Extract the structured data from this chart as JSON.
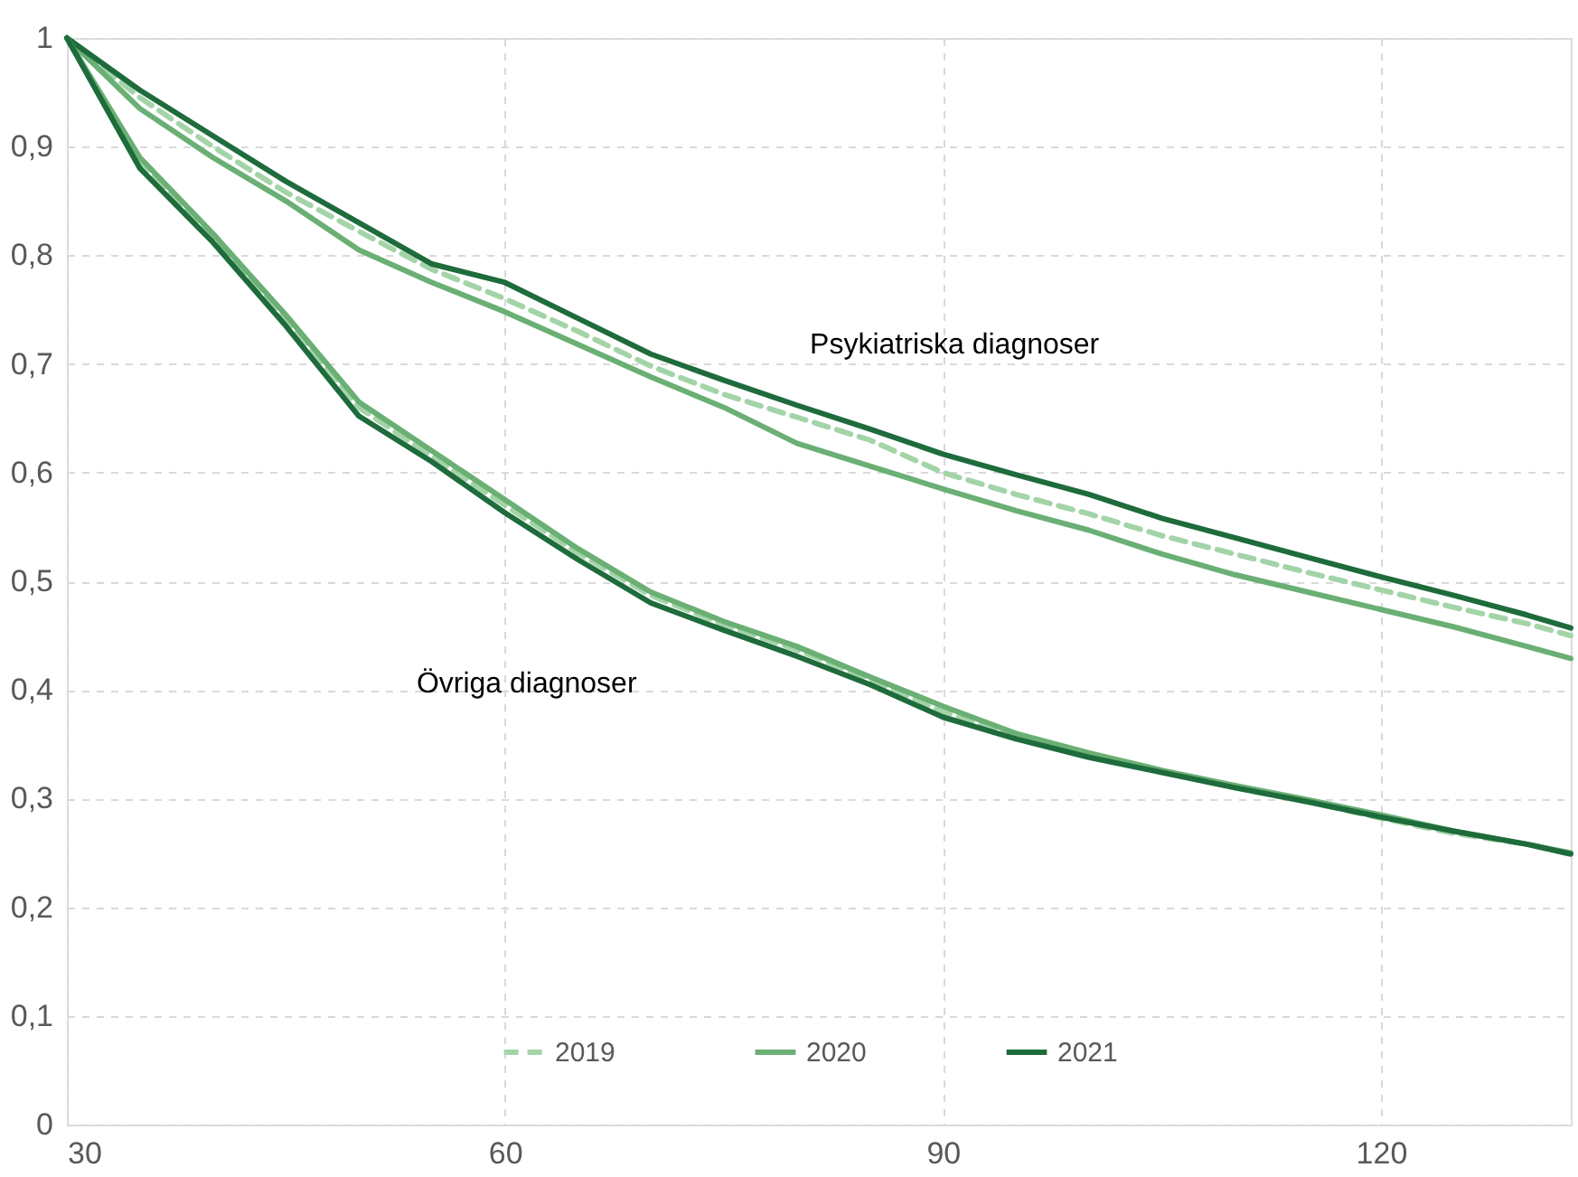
{
  "chart_data": {
    "type": "line",
    "x": [
      30,
      35,
      40,
      45,
      50,
      55,
      60,
      65,
      70,
      75,
      80,
      85,
      90,
      95,
      100,
      105,
      110,
      115,
      120,
      125,
      130,
      133
    ],
    "series": [
      {
        "name": "2019",
        "color": "#a3d4a8",
        "line_style": "dashed",
        "values": [
          1,
          0.945,
          0.9,
          0.858,
          0.822,
          0.787,
          0.76,
          0.73,
          0.698,
          0.672,
          0.651,
          0.63,
          0.6,
          0.58,
          0.562,
          0.542,
          0.525,
          0.508,
          0.492,
          0.476,
          0.461,
          0.45
        ]
      },
      {
        "name": "2020",
        "color": "#6aaf74",
        "values": [
          1,
          0.935,
          0.89,
          0.85,
          0.805,
          0.775,
          0.748,
          0.718,
          0.688,
          0.66,
          0.627,
          0.606,
          0.585,
          0.565,
          0.547,
          0.525,
          0.506,
          0.49,
          0.474,
          0.458,
          0.44,
          0.429
        ]
      },
      {
        "name": "2021",
        "color": "#1e6b3c",
        "values": [
          1,
          0.952,
          0.91,
          0.868,
          0.83,
          0.792,
          0.775,
          0.742,
          0.709,
          0.685,
          0.662,
          0.64,
          0.617,
          0.598,
          0.58,
          0.558,
          0.54,
          0.522,
          0.504,
          0.487,
          0.469,
          0.457
        ]
      },
      {
        "color": "#a3d4a8",
        "line_style": "dashed",
        "values": [
          1,
          0.885,
          0.818,
          0.742,
          0.66,
          0.615,
          0.57,
          0.526,
          0.487,
          0.46,
          0.437,
          0.41,
          0.38,
          0.357,
          0.34,
          0.325,
          0.31,
          0.297,
          0.282,
          0.268,
          0.258,
          0.249
        ]
      },
      {
        "color": "#6aaf74",
        "values": [
          1,
          0.89,
          0.82,
          0.745,
          0.665,
          0.62,
          0.575,
          0.53,
          0.49,
          0.463,
          0.44,
          0.412,
          0.385,
          0.36,
          0.342,
          0.326,
          0.312,
          0.299,
          0.285,
          0.27,
          0.258,
          0.25
        ]
      },
      {
        "color": "#1e6b3c",
        "values": [
          1,
          0.88,
          0.812,
          0.735,
          0.652,
          0.61,
          0.563,
          0.52,
          0.48,
          0.455,
          0.431,
          0.405,
          0.375,
          0.355,
          0.338,
          0.324,
          0.31,
          0.297,
          0.283,
          0.27,
          0.258,
          0.249
        ]
      }
    ],
    "xlim": [
      30,
      133
    ],
    "xticks": [
      30,
      60,
      90,
      120
    ],
    "ylim": [
      0,
      1
    ],
    "yticks": [
      0,
      {
        "value": 0.1,
        "label": "0,1"
      },
      {
        "value": 0.2,
        "label": "0,2"
      },
      {
        "value": 0.3,
        "label": "0,3"
      },
      {
        "value": 0.4,
        "label": "0,4"
      },
      {
        "value": 0.5,
        "label": "0,5"
      },
      {
        "value": 0.6,
        "label": "0,6"
      },
      {
        "value": 0.7,
        "label": "0,7"
      },
      {
        "value": 0.8,
        "label": "0,8"
      },
      {
        "value": 0.9,
        "label": "0,9"
      },
      1
    ],
    "annotations": [
      "Psykiatriska diagnoser",
      "Övriga diagnoser"
    ],
    "grid": true,
    "legend": "bottom",
    "marker": "none",
    "line_style": "solid"
  }
}
